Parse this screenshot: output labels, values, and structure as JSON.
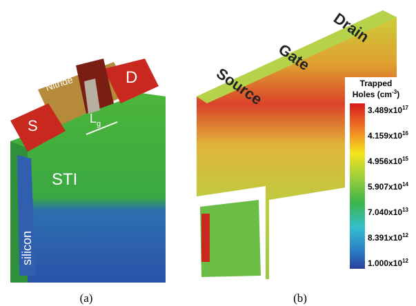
{
  "panel_a": {
    "labels": {
      "source": "S",
      "drain": "D",
      "nitride": "Nitride",
      "gate_length": "L",
      "gate_length_sub": "g",
      "sti": "STI",
      "silicon": "silicon"
    },
    "caption": "(a)"
  },
  "panel_b": {
    "labels": {
      "source": "Source",
      "gate": "Gate",
      "drain": "Drain"
    },
    "colorbar": {
      "title": {
        "line1": "Trapped",
        "line2": "Holes (cm",
        "line2_sup": "-3",
        "line2_end": ")"
      },
      "ticks": [
        {
          "base": "3.489x10",
          "exp": "17"
        },
        {
          "base": "4.159x10",
          "exp": "16"
        },
        {
          "base": "4.956x10",
          "exp": "15"
        },
        {
          "base": "5.907x10",
          "exp": "14"
        },
        {
          "base": "7.040x10",
          "exp": "13"
        },
        {
          "base": "8.391x10",
          "exp": "12"
        },
        {
          "base": "1.000x10",
          "exp": "12"
        }
      ]
    },
    "caption": "(b)"
  }
}
